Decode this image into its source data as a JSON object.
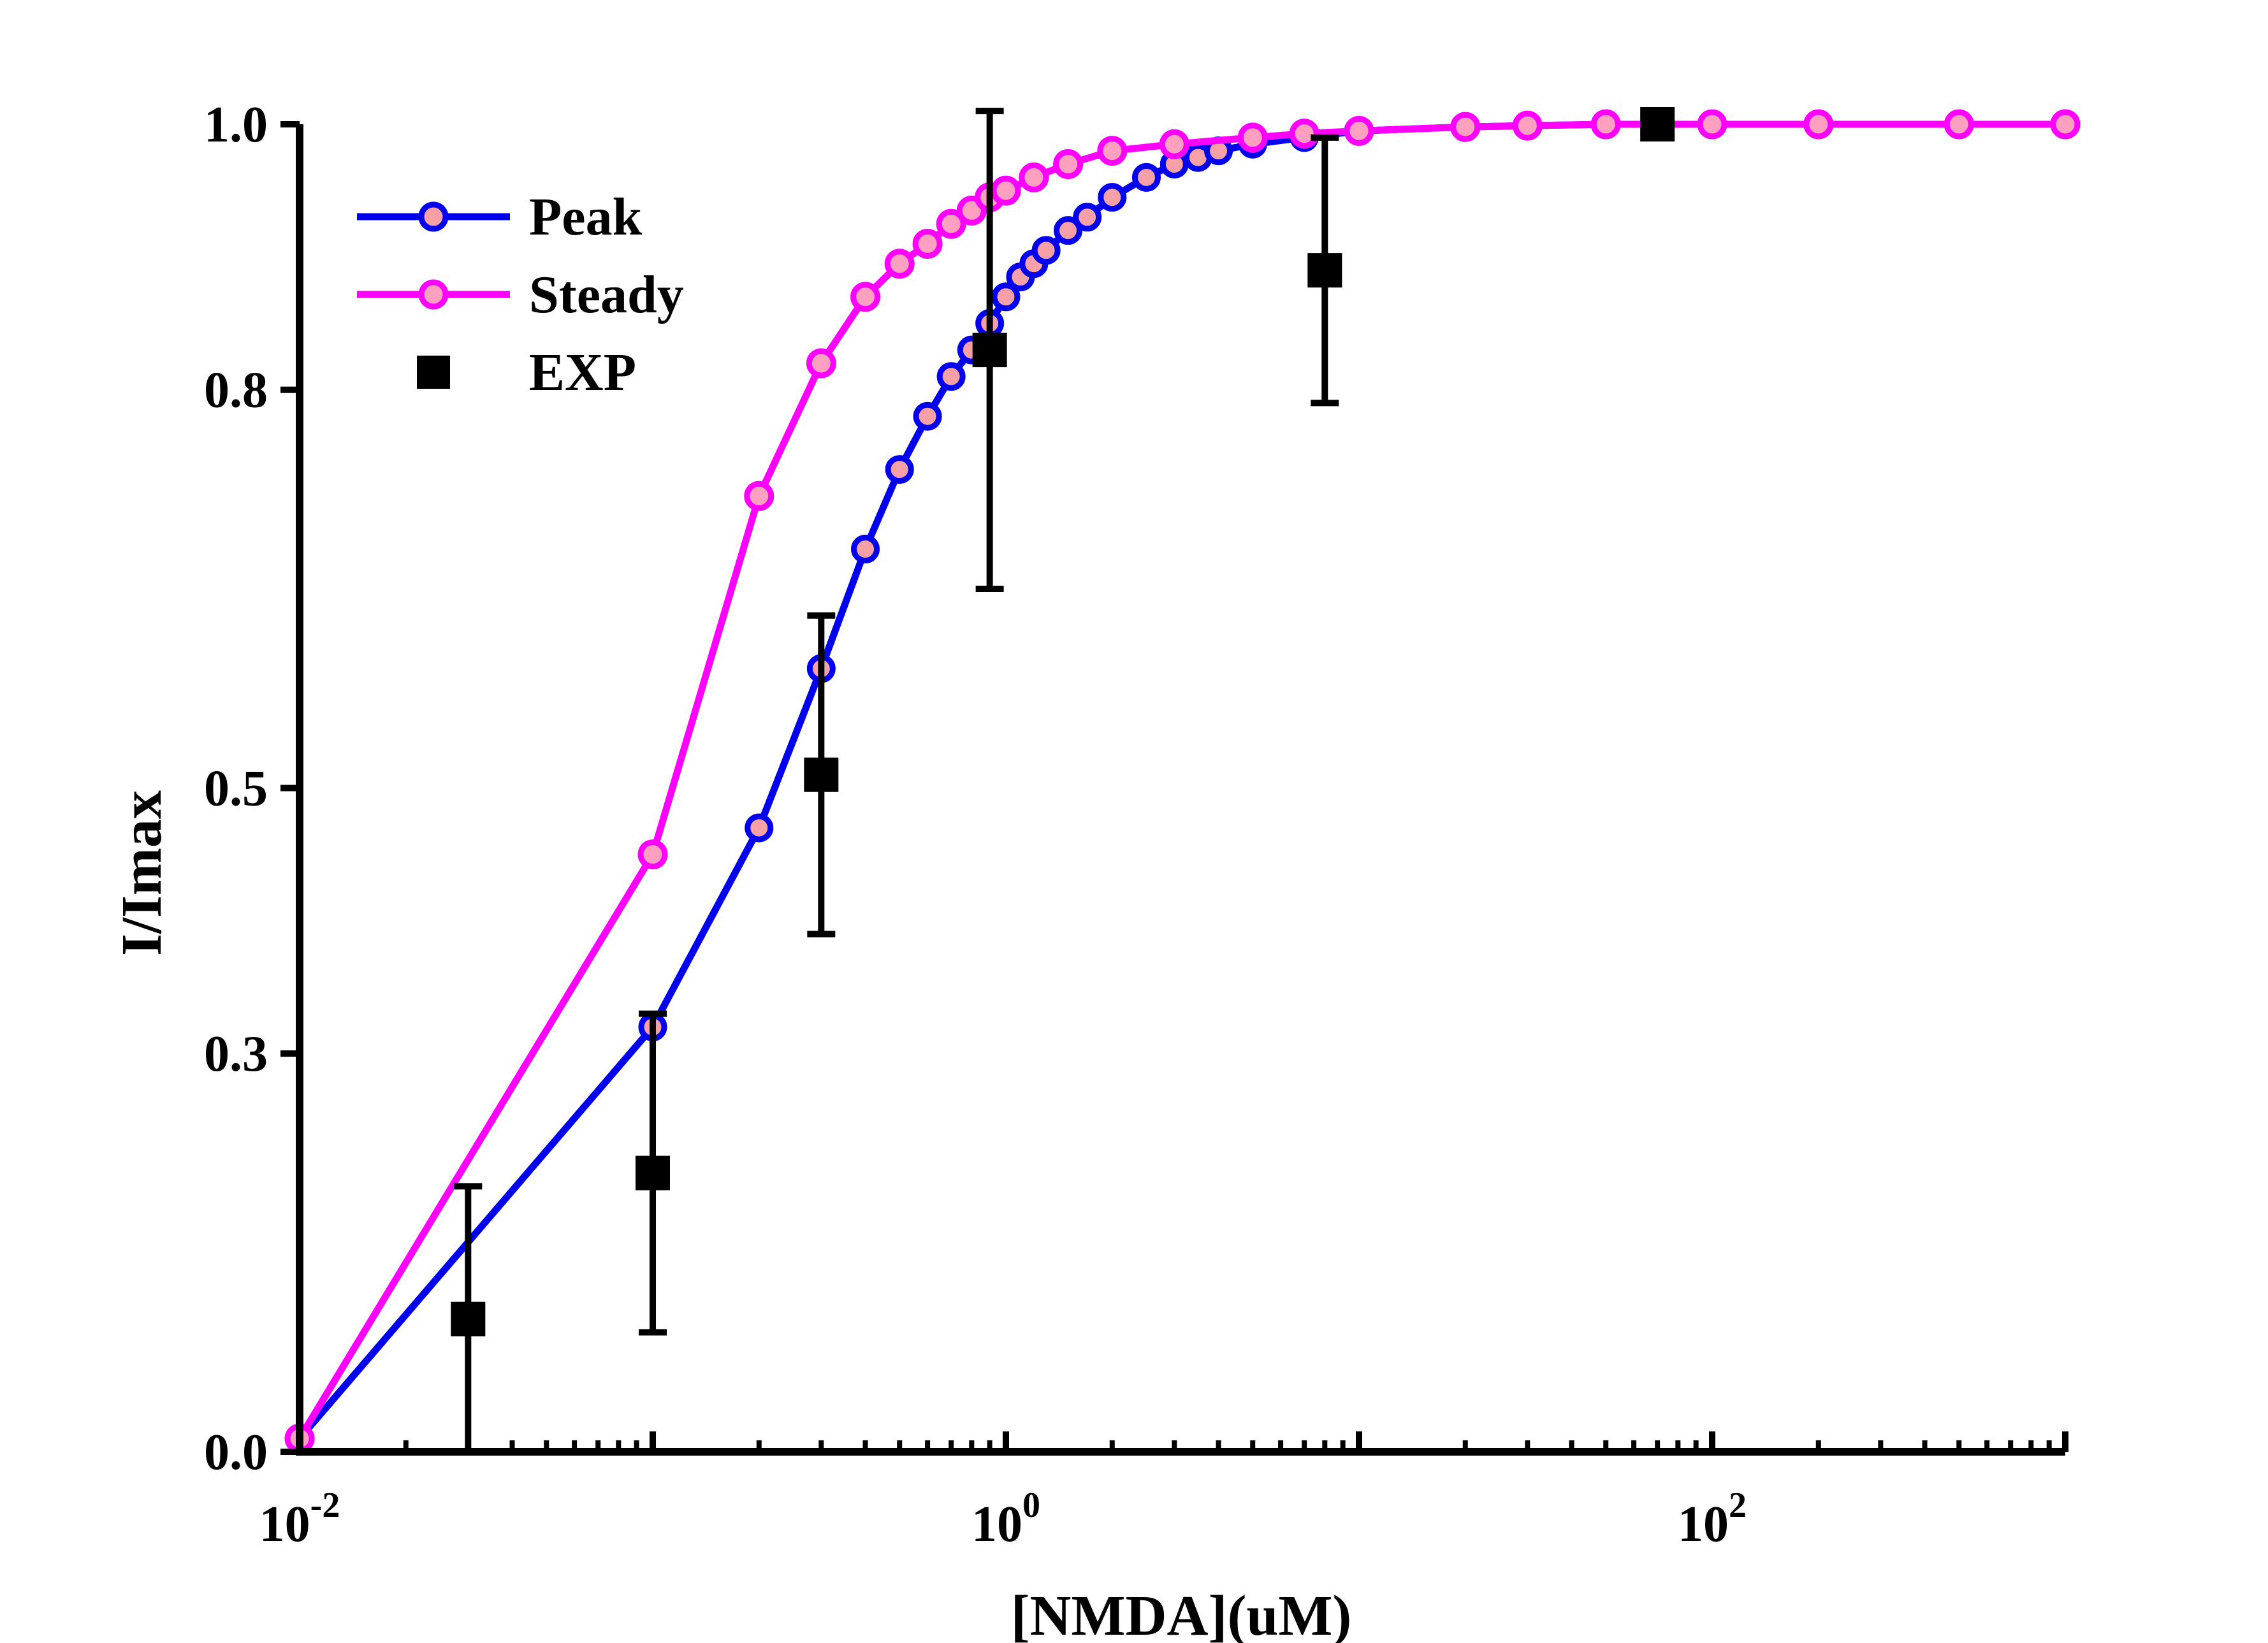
{
  "chart_data": {
    "type": "scatter",
    "xlabel": "[NMDA](uM)",
    "ylabel": "I/Imax",
    "xscale": "log",
    "xlim": [
      0.01,
      1000
    ],
    "ylim": [
      0.0,
      1.0
    ],
    "x_ticks": [
      {
        "base": "10",
        "exp": "-2"
      },
      {
        "base": "10",
        "exp": "0"
      },
      {
        "base": "10",
        "exp": "2"
      }
    ],
    "y_ticks": [
      "0.0",
      "0.3",
      "0.5",
      "0.8",
      "1.0"
    ],
    "legend_position": "top-left",
    "grid": false,
    "series": [
      {
        "name": "Peak",
        "color": "#0000ee",
        "marker": "open-circle",
        "x": [
          0.01,
          0.1,
          0.2,
          0.3,
          0.4,
          0.5,
          0.6,
          0.7,
          0.8,
          0.9,
          1.0,
          1.1,
          1.2,
          1.3,
          1.5,
          1.7,
          2.0,
          2.5,
          3.0,
          3.5,
          4.0,
          5.0,
          7.0,
          10,
          20,
          30,
          50,
          100,
          200,
          500,
          1000
        ],
        "values": [
          0.01,
          0.32,
          0.47,
          0.59,
          0.68,
          0.74,
          0.78,
          0.81,
          0.83,
          0.85,
          0.87,
          0.885,
          0.895,
          0.905,
          0.92,
          0.93,
          0.945,
          0.96,
          0.97,
          0.975,
          0.98,
          0.985,
          0.99,
          0.995,
          0.998,
          0.999,
          1.0,
          1.0,
          1.0,
          1.0,
          1.0
        ]
      },
      {
        "name": "Steady",
        "color": "#ff00ff",
        "marker": "filled-circle",
        "x": [
          0.01,
          0.1,
          0.2,
          0.3,
          0.4,
          0.5,
          0.6,
          0.7,
          0.8,
          0.9,
          1.0,
          1.2,
          1.5,
          2.0,
          3.0,
          5.0,
          7.0,
          10,
          20,
          30,
          50,
          100,
          200,
          500,
          1000
        ],
        "values": [
          0.01,
          0.45,
          0.72,
          0.82,
          0.87,
          0.895,
          0.91,
          0.925,
          0.935,
          0.945,
          0.95,
          0.96,
          0.97,
          0.98,
          0.985,
          0.99,
          0.993,
          0.995,
          0.998,
          0.999,
          1.0,
          1.0,
          1.0,
          1.0,
          1.0
        ]
      },
      {
        "name": "EXP",
        "color": "#000000",
        "marker": "filled-square",
        "x": [
          0.03,
          0.1,
          0.3,
          0.9,
          8,
          70
        ],
        "values": [
          0.1,
          0.21,
          0.51,
          0.83,
          0.89,
          1.0
        ],
        "error": [
          0.1,
          0.12,
          0.12,
          0.18,
          0.1,
          0.0
        ]
      }
    ]
  }
}
